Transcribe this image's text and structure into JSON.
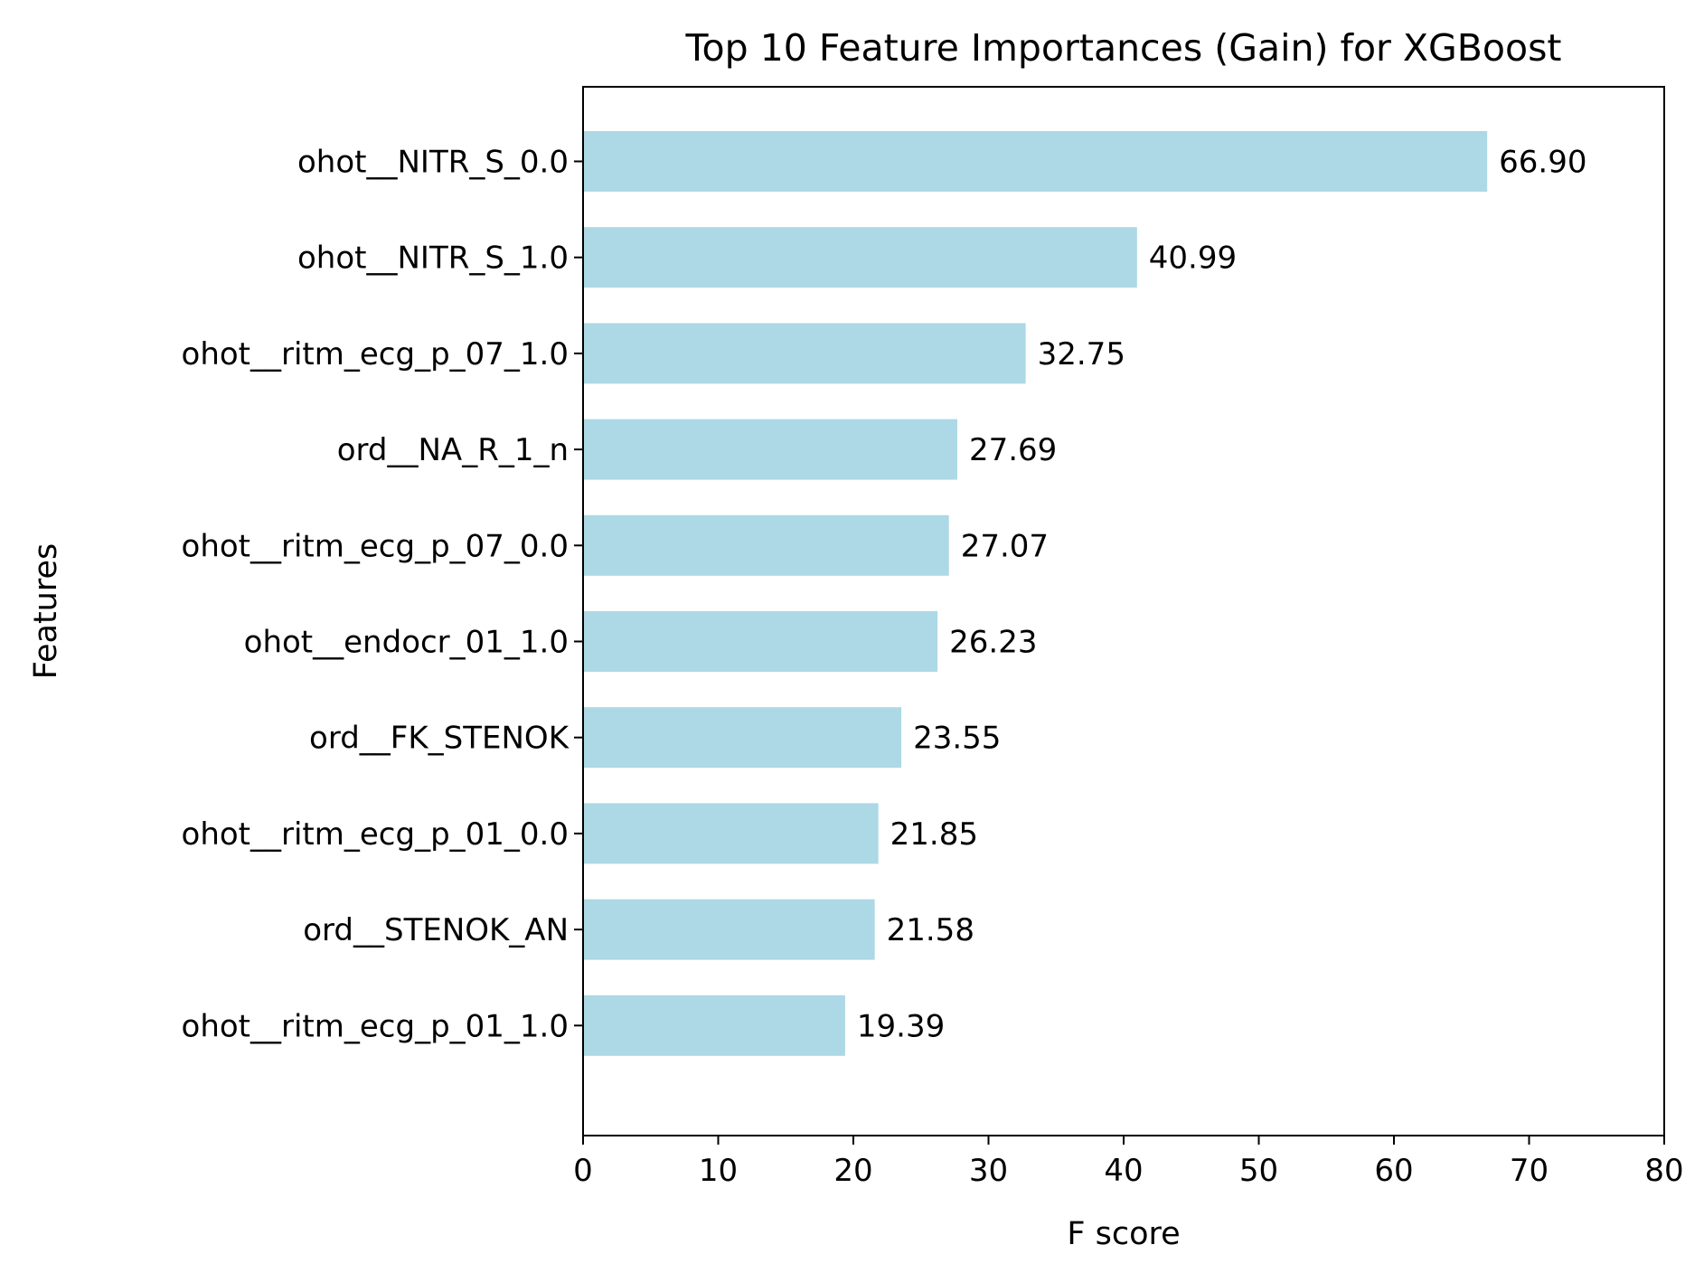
{
  "chart_data": {
    "type": "bar",
    "orientation": "horizontal",
    "title": "Top 10 Feature Importances (Gain) for XGBoost",
    "xlabel": "F score",
    "ylabel": "Features",
    "xlim": [
      0,
      80
    ],
    "xticks": [
      0,
      10,
      20,
      30,
      40,
      50,
      60,
      70,
      80
    ],
    "grid": false,
    "bar_color": "#add8e6",
    "categories": [
      "ohot__NITR_S_0.0",
      "ohot__NITR_S_1.0",
      "ohot__ritm_ecg_p_07_1.0",
      "ord__NA_R_1_n",
      "ohot__ritm_ecg_p_07_0.0",
      "ohot__endocr_01_1.0",
      "ord__FK_STENOK",
      "ohot__ritm_ecg_p_01_0.0",
      "ord__STENOK_AN",
      "ohot__ritm_ecg_p_01_1.0"
    ],
    "values": [
      66.9,
      40.99,
      32.75,
      27.69,
      27.07,
      26.23,
      23.55,
      21.85,
      21.58,
      19.39
    ],
    "value_labels": [
      "66.90",
      "40.99",
      "32.75",
      "27.69",
      "27.07",
      "26.23",
      "23.55",
      "21.85",
      "21.58",
      "19.39"
    ]
  }
}
